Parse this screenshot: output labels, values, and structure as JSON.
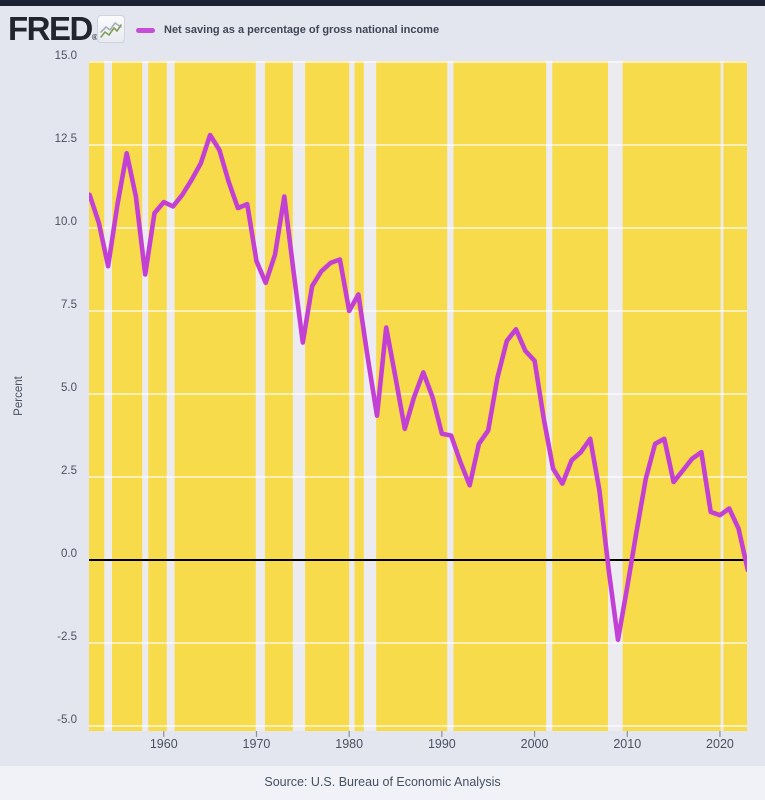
{
  "header": {
    "logo_text": "FRED",
    "reg_mark": "®",
    "legend_label": "Net saving as a percentage of gross national income"
  },
  "footer": {
    "source": "Source: U.S. Bureau of Economic Analysis"
  },
  "colors": {
    "page_bg": "#e4e6ef",
    "top_bar": "#1c2134",
    "plot_bg": "#f8db4b",
    "recession_band": "#ebebf0",
    "gridline": "#ffffff",
    "data_line": "#c340d5",
    "zero_line": "#000000",
    "axis_text": "#4a5160",
    "legend_swatch": "#c44fd6"
  },
  "chart_data": {
    "type": "line",
    "title": "Net saving as a percentage of gross national income",
    "xlabel": "",
    "ylabel": "Percent",
    "legend_position": "top",
    "grid": true,
    "ylim": [
      -5.15,
      15.03
    ],
    "xlim": [
      1951.9,
      2024.0
    ],
    "yticks": [
      15.0,
      12.5,
      10.0,
      7.5,
      5.0,
      2.5,
      0.0,
      -2.5,
      -5.0
    ],
    "ytick_labels": [
      "15.0",
      "12.5",
      "10.0",
      "7.5",
      "5.0",
      "2.5",
      "0.0",
      "-2.5",
      "-5.0"
    ],
    "xticks": [
      1960,
      1970,
      1980,
      1990,
      2000,
      2010,
      2020
    ],
    "xtick_labels": [
      "1960",
      "1970",
      "1980",
      "1990",
      "2000",
      "2010",
      "2020"
    ],
    "zero_line": 0,
    "x": [
      1952,
      1953,
      1954,
      1955,
      1956,
      1957,
      1958,
      1959,
      1960,
      1961,
      1962,
      1963,
      1964,
      1965,
      1966,
      1967,
      1968,
      1969,
      1970,
      1971,
      1972,
      1973,
      1974,
      1975,
      1976,
      1977,
      1978,
      1979,
      1980,
      1981,
      1982,
      1983,
      1984,
      1985,
      1986,
      1987,
      1988,
      1989,
      1990,
      1991,
      1992,
      1993,
      1994,
      1995,
      1996,
      1997,
      1998,
      1999,
      2000,
      2001,
      2002,
      2003,
      2004,
      2005,
      2006,
      2007,
      2008,
      2009,
      2010,
      2011,
      2012,
      2013,
      2014,
      2015,
      2016,
      2017,
      2018,
      2019,
      2020,
      2021,
      2022,
      2023
    ],
    "series": [
      {
        "name": "Net saving as a percentage of gross national income",
        "values": [
          11.0,
          10.15,
          8.85,
          10.7,
          12.25,
          10.95,
          8.6,
          10.45,
          10.78,
          10.65,
          11.0,
          11.45,
          11.95,
          12.8,
          12.35,
          11.4,
          10.6,
          10.72,
          9.0,
          8.35,
          9.2,
          10.95,
          8.7,
          6.55,
          8.25,
          8.7,
          8.95,
          9.05,
          7.5,
          8.0,
          6.1,
          4.35,
          7.0,
          5.5,
          3.95,
          4.9,
          5.65,
          4.9,
          3.8,
          3.75,
          2.95,
          2.25,
          3.5,
          3.9,
          5.5,
          6.6,
          6.95,
          6.3,
          6.0,
          4.25,
          2.75,
          2.3,
          3.0,
          3.25,
          3.65,
          2.1,
          -0.3,
          -2.4,
          -0.8,
          0.85,
          2.45,
          3.5,
          3.65,
          2.35,
          2.7,
          3.05,
          3.25,
          1.45,
          1.35,
          1.55,
          0.95,
          -0.3
        ]
      }
    ],
    "recession_bands_years": [
      [
        1953.58,
        1954.42
      ],
      [
        1957.67,
        1958.33
      ],
      [
        1960.33,
        1961.17
      ],
      [
        1969.92,
        1970.92
      ],
      [
        1973.92,
        1975.25
      ],
      [
        1980.0,
        1980.58
      ],
      [
        1981.58,
        1982.92
      ],
      [
        1990.58,
        1991.25
      ],
      [
        2001.25,
        2001.92
      ],
      [
        2007.92,
        2009.5
      ],
      [
        2020.08,
        2020.37
      ]
    ]
  }
}
